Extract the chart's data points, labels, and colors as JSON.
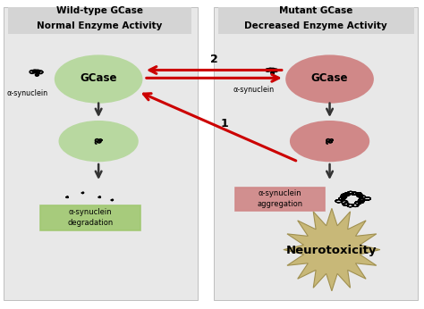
{
  "bg_color": "#f0f0f0",
  "left_panel_color": "#e8e8e8",
  "right_panel_color": "#e8e8e8",
  "left_title_line1": "Wild-type GCase",
  "left_title_line2": "Normal Enzyme Activity",
  "right_title_line1": "Mutant GCase",
  "right_title_line2": "Decreased Enzyme Activity",
  "left_ellipse_top_color": "#b8d8a0",
  "left_ellipse_bottom_color": "#b8d8a0",
  "right_ellipse_top_color": "#d08888",
  "right_ellipse_bottom_color": "#d08888",
  "arrow_color": "#333333",
  "red_arrow_color": "#cc0000",
  "gcase_label": "GCase",
  "alpha_syn_label_left": "α-synuclein",
  "alpha_syn_label_right": "α-synuclein",
  "alpha_syn_agg_label": "α-synuclein\naggregation",
  "alpha_syn_deg_label": "α-synuclein\ndegradation",
  "neurotox_label": "Neurotoxicity",
  "label_1": "1",
  "label_2": "2",
  "green_box_color": "#a0c870",
  "pink_box_color": "#d08888",
  "neurotox_color": "#c8b878",
  "neurotox_edge_color": "#a09050"
}
